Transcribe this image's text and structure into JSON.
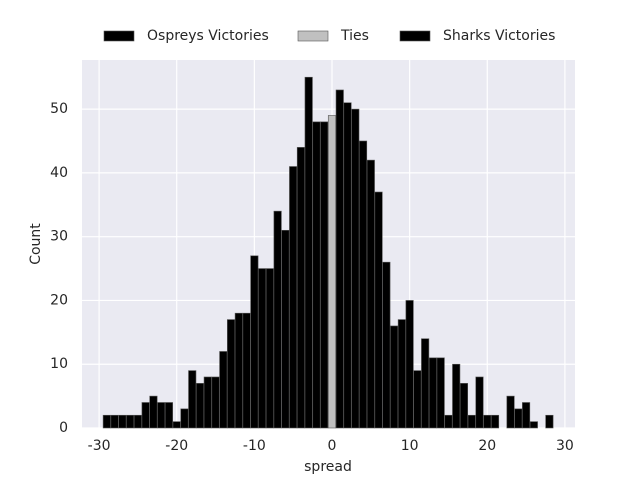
{
  "chart_data": {
    "type": "bar",
    "x_label": "spread",
    "y_label": "Count",
    "xlim": [
      -32.2,
      31.3
    ],
    "ylim": [
      0,
      57.7
    ],
    "xticks": [
      -30,
      -20,
      -10,
      0,
      10,
      20,
      30
    ],
    "yticks": [
      0,
      10,
      20,
      30,
      40,
      50
    ],
    "grid": true,
    "legend": "top",
    "series": [
      {
        "name": "Ospreys Victories",
        "color": "#000000",
        "x": [
          -29,
          -28,
          -27,
          -26,
          -25,
          -24,
          -23,
          -22,
          -21,
          -20,
          -19,
          -18,
          -17,
          -16,
          -15,
          -14,
          -13,
          -12,
          -11,
          -10,
          -9,
          -8,
          -7,
          -6,
          -5,
          -4,
          -3,
          -2,
          -1
        ],
        "values": [
          2,
          2,
          2,
          2,
          2,
          4,
          5,
          4,
          4,
          1,
          3,
          9,
          7,
          8,
          8,
          12,
          17,
          18,
          18,
          27,
          25,
          25,
          34,
          31,
          41,
          44,
          55,
          48,
          48
        ]
      },
      {
        "name": "Ties",
        "color": "#c0c0c0",
        "x": [
          0
        ],
        "values": [
          49
        ]
      },
      {
        "name": "Sharks Victories",
        "color": "#000000",
        "x": [
          1,
          2,
          3,
          4,
          5,
          6,
          7,
          8,
          9,
          10,
          11,
          12,
          13,
          14,
          15,
          16,
          17,
          18,
          19,
          20,
          21,
          22,
          23,
          24,
          25,
          26,
          27,
          28
        ],
        "values": [
          53,
          51,
          50,
          45,
          42,
          37,
          26,
          16,
          17,
          20,
          9,
          14,
          11,
          11,
          2,
          10,
          7,
          2,
          8,
          2,
          2,
          0,
          5,
          3,
          4,
          1,
          0,
          2
        ]
      }
    ]
  }
}
